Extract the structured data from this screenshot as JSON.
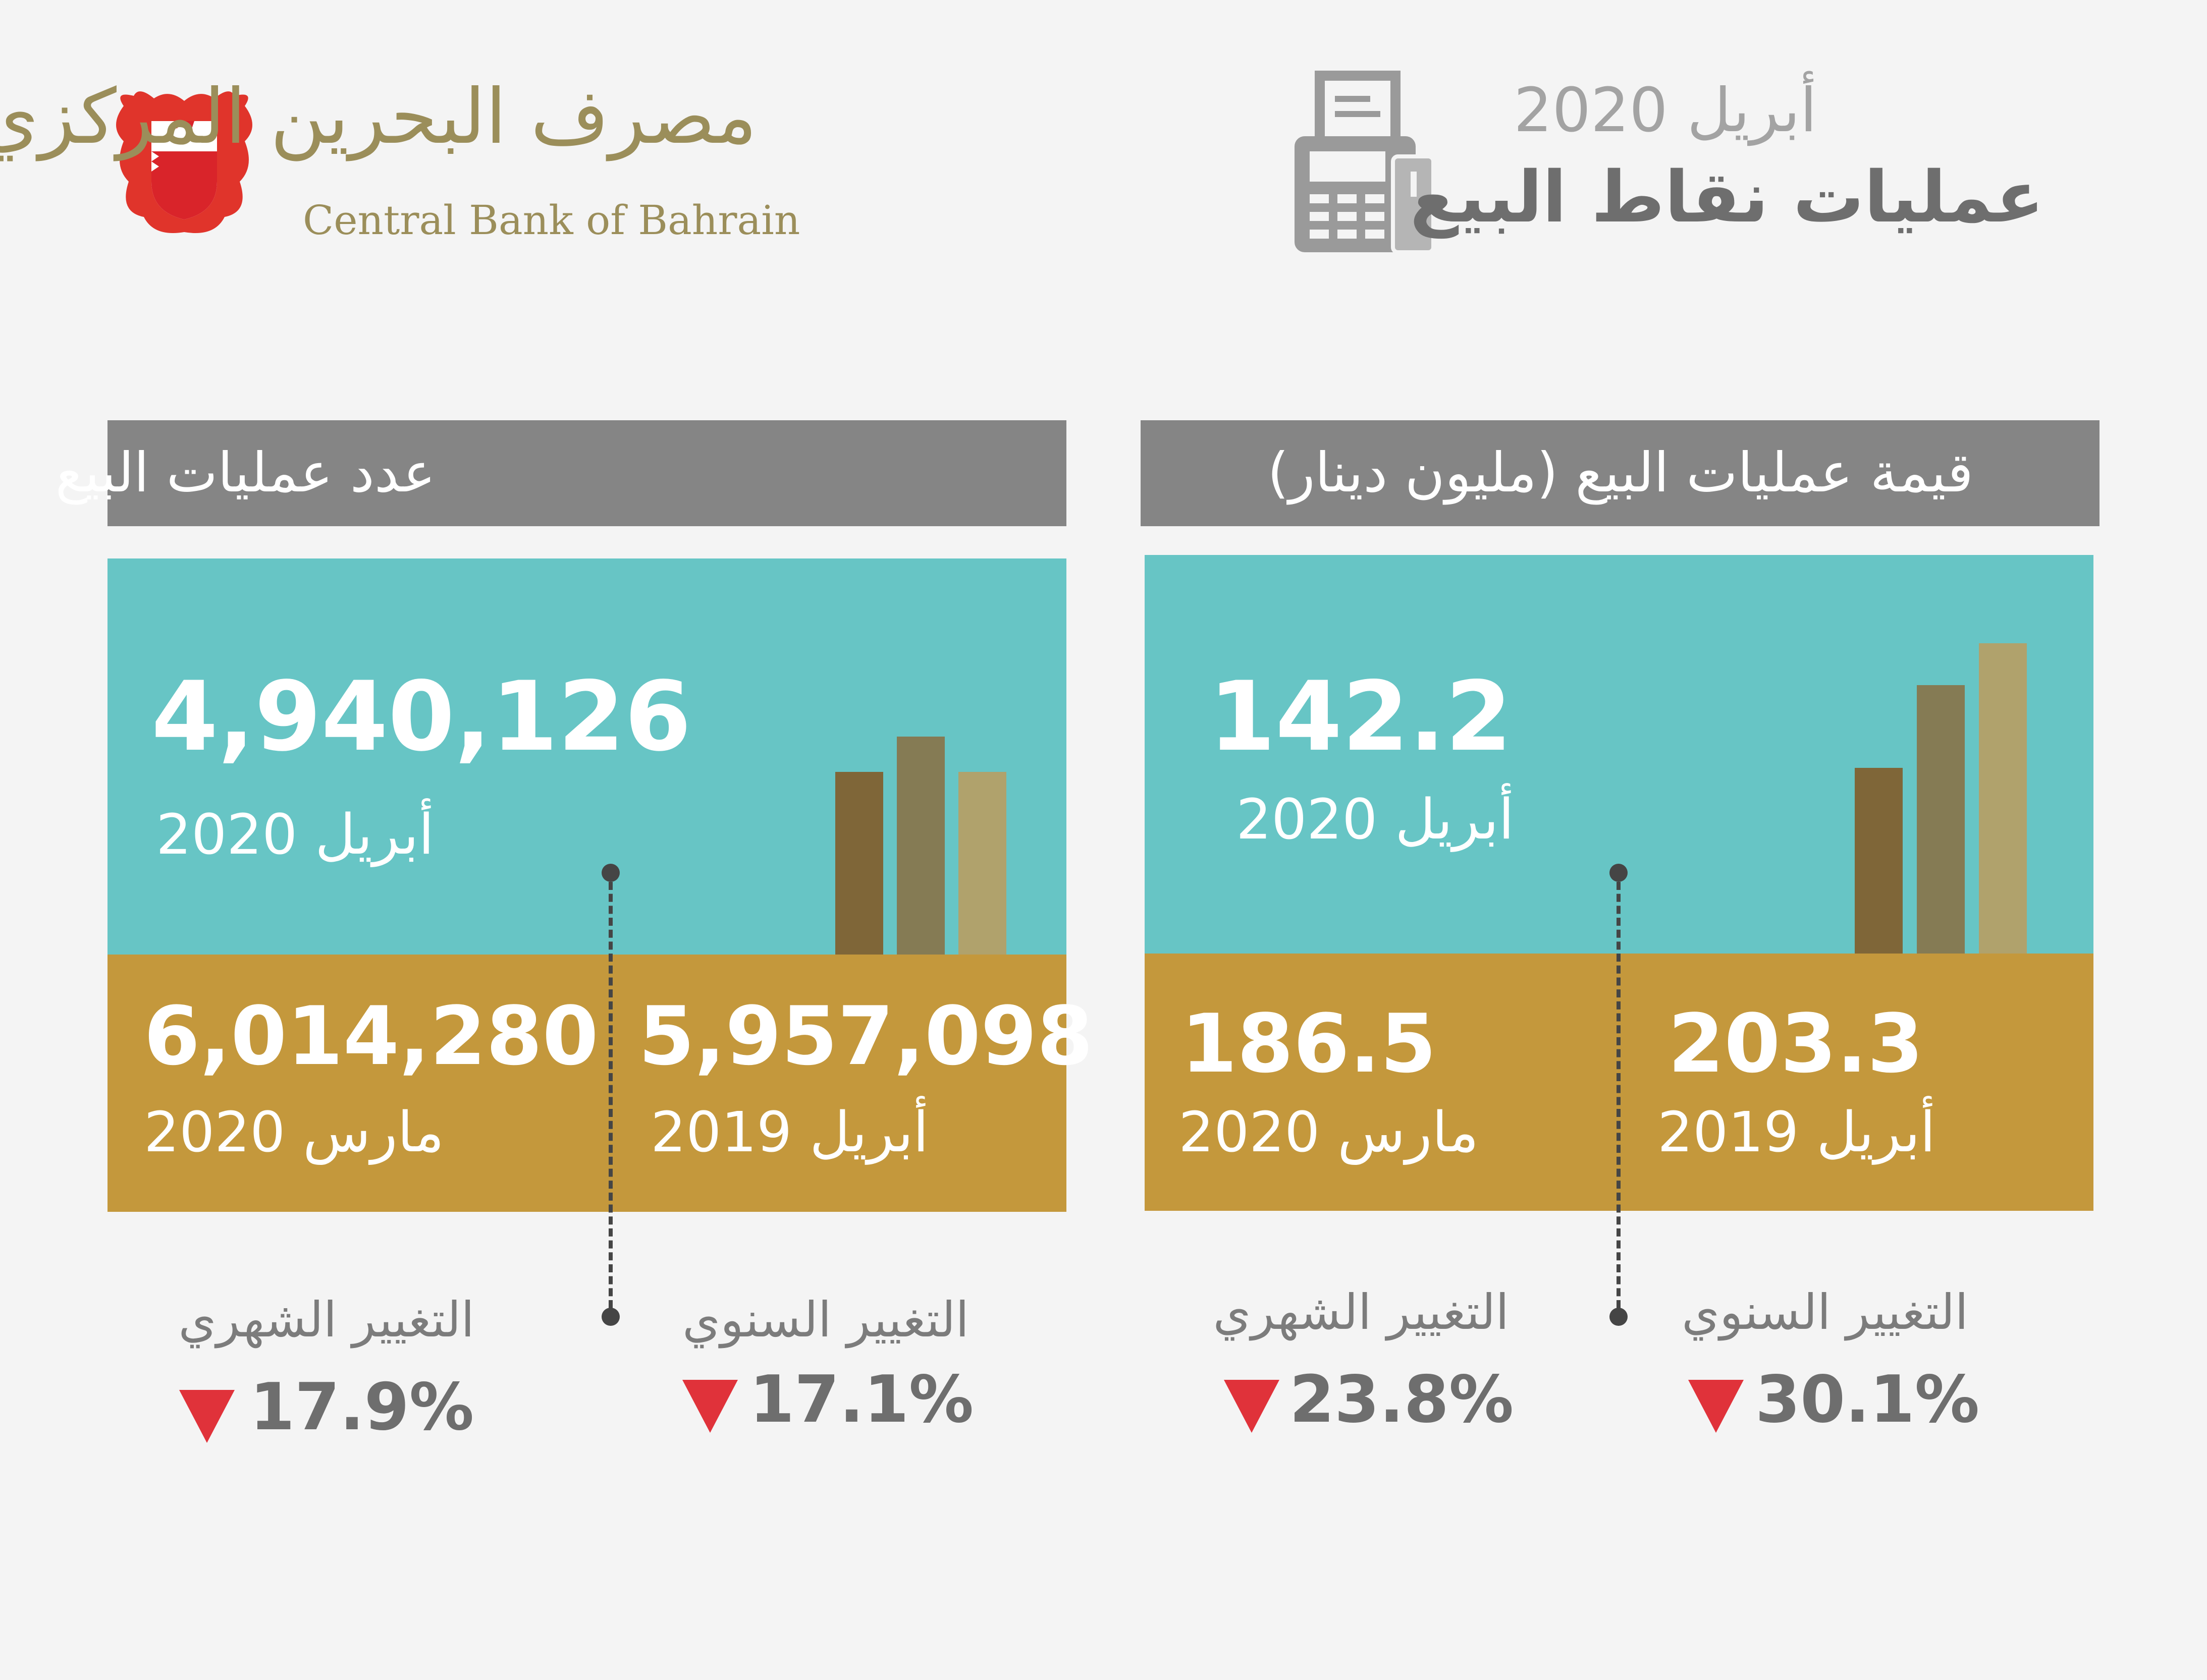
{
  "header": {
    "bank_name_ar": "مصرف البحرين المركزي",
    "bank_name_en": "Central Bank of Bahrain",
    "date": "أبريل 2020",
    "title": "عمليات نقاط البيع",
    "pos_icon": "pos-terminal-icon",
    "emblem_icon": "bahrain-emblem-icon"
  },
  "count_section": {
    "title": "عدد عمليات البيع",
    "current": {
      "value": "4,940,126",
      "label": "أبريل 2020"
    },
    "prev_month": {
      "value": "6,014,280",
      "label": "مارس 2020"
    },
    "prev_year": {
      "value": "5,957,098",
      "label": "أبريل 2019"
    },
    "monthly_change": {
      "label": "التغيير الشهري",
      "value": "17.9%",
      "direction": "down"
    },
    "yearly_change": {
      "label": "التغيير السنوي",
      "value": "17.1%",
      "direction": "down"
    }
  },
  "value_section": {
    "title": "قيمة عمليات البيع (مليون دينار)",
    "current": {
      "value": "142.2",
      "label": "أبريل 2020"
    },
    "prev_month": {
      "value": "186.5",
      "label": "مارس 2020"
    },
    "prev_year": {
      "value": "203.3",
      "label": "أبريل 2019"
    },
    "monthly_change": {
      "label": "التغيير الشهري",
      "value": "23.8%",
      "direction": "down"
    },
    "yearly_change": {
      "label": "التغيير السنوي",
      "value": "30.1%",
      "direction": "down"
    }
  },
  "colors": {
    "teal": "#67c5c5",
    "gold": "#c4983c",
    "header_gray": "#858585",
    "down_red": "#e0323a",
    "bar_dark": "#7f6638",
    "bar_mid": "#857b54",
    "bar_light": "#b0a26c"
  }
}
